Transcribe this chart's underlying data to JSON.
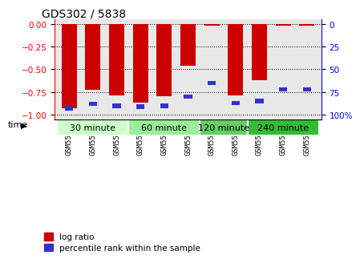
{
  "title": "GDS302 / 5838",
  "samples": [
    "GSM5567",
    "GSM5568",
    "GSM5569",
    "GSM5570",
    "GSM5571",
    "GSM5572",
    "GSM5573",
    "GSM5574",
    "GSM5575",
    "GSM5576",
    "GSM5577"
  ],
  "log_ratio": [
    -0.93,
    -0.73,
    -0.79,
    -0.87,
    -0.8,
    -0.46,
    -0.02,
    -0.79,
    -0.62,
    -0.02,
    -0.02
  ],
  "percentile_rank": [
    7,
    12,
    10,
    9,
    10,
    20,
    35,
    13,
    15,
    28,
    28
  ],
  "bar_color": "#cc0000",
  "blue_color": "#3333cc",
  "groups": [
    {
      "label": "30 minute",
      "start": 0,
      "end": 3
    },
    {
      "label": "60 minute",
      "start": 3,
      "end": 6
    },
    {
      "label": "120 minute",
      "start": 6,
      "end": 8
    },
    {
      "label": "240 minute",
      "start": 8,
      "end": 11
    }
  ],
  "group_colors": [
    "#ccffcc",
    "#99ee99",
    "#66cc66",
    "#33bb33"
  ],
  "ylim_left": [
    -1.05,
    0.05
  ],
  "ylim_right": [
    -1.05,
    0.05
  ],
  "yticks_left": [
    0,
    -0.25,
    -0.5,
    -0.75,
    -1.0
  ],
  "yticks_right_vals": [
    0,
    25,
    50,
    75,
    100
  ],
  "yticks_right_pos": [
    0,
    -0.25,
    -0.5,
    -0.75,
    -1.0
  ],
  "bg_color": "#ffffff",
  "plot_bg": "#e8e8e8",
  "time_label": "time",
  "legend_log": "log ratio",
  "legend_pct": "percentile rank within the sample"
}
